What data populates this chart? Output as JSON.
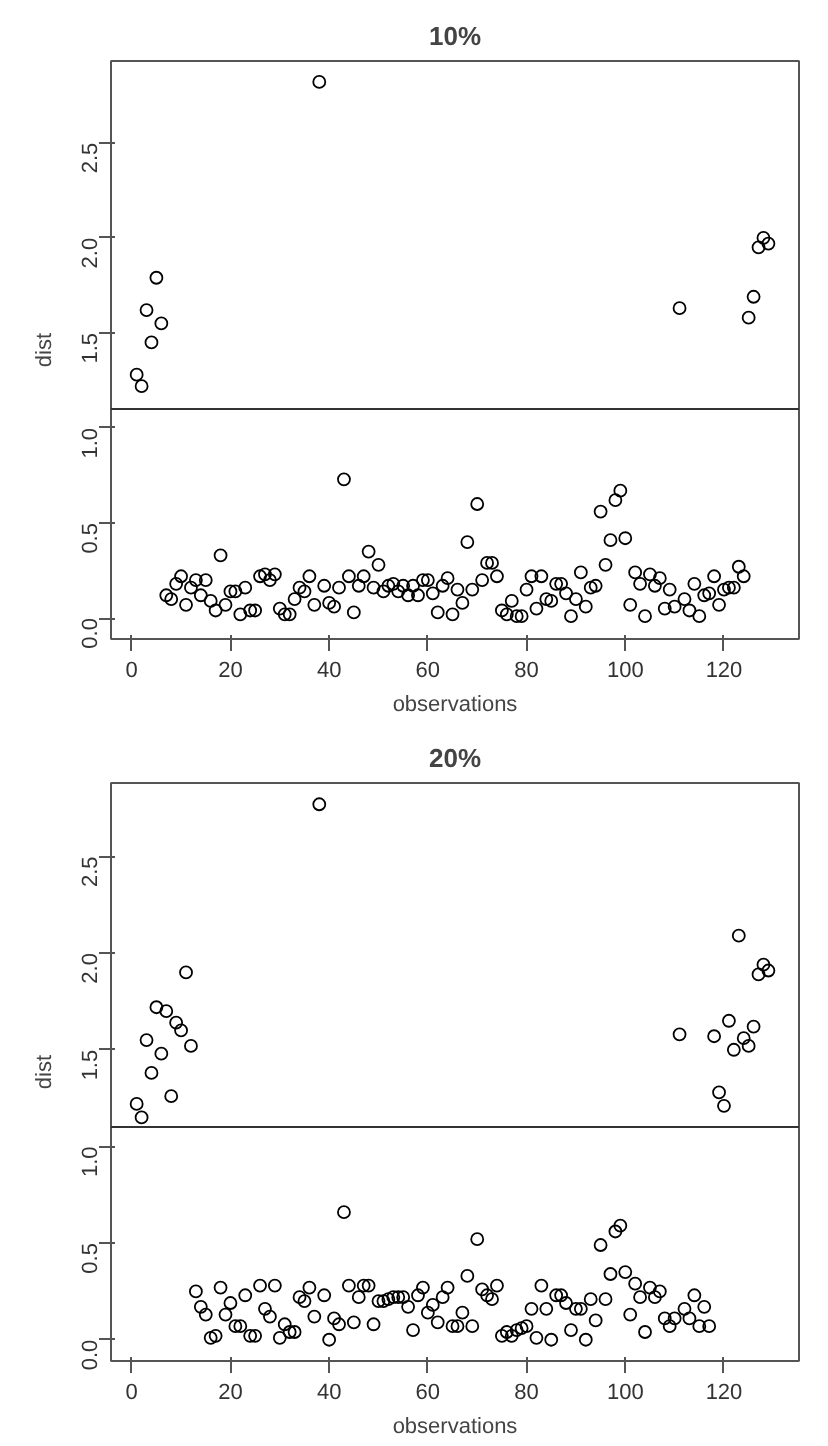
{
  "chart_data": [
    {
      "type": "scatter",
      "title": "10%",
      "xlabel": "observations",
      "ylabel": "dist",
      "marker": "circle",
      "grid": false,
      "x": [
        1,
        2,
        3,
        4,
        5,
        6,
        38,
        111,
        125,
        126,
        127,
        128,
        129,
        7,
        8,
        9,
        10,
        11,
        12,
        13,
        14,
        15,
        16,
        17,
        18,
        19,
        20,
        21,
        22,
        23,
        24,
        25,
        26,
        27,
        28,
        29,
        30,
        31,
        32,
        33,
        34,
        35,
        36,
        37,
        39,
        40,
        41,
        42,
        43,
        44,
        45,
        46,
        47,
        48,
        49,
        50,
        51,
        52,
        53,
        54,
        55,
        56,
        57,
        58,
        59,
        60,
        61,
        62,
        63,
        64,
        65,
        66,
        67,
        68,
        69,
        70,
        71,
        72,
        73,
        74,
        75,
        76,
        77,
        78,
        79,
        80,
        81,
        82,
        83,
        84,
        85,
        86,
        87,
        88,
        89,
        90,
        91,
        92,
        93,
        94,
        95,
        96,
        97,
        98,
        99,
        100,
        101,
        102,
        103,
        104,
        105,
        106,
        107,
        108,
        109,
        110,
        112,
        113,
        114,
        115,
        116,
        117,
        118,
        119,
        120,
        121,
        122,
        123,
        124
      ],
      "series": [
        {
          "color": "#000000",
          "values": [
            1.28,
            1.22,
            1.62,
            1.45,
            1.79,
            1.55,
            2.82,
            1.63,
            1.58,
            1.69,
            1.95,
            2.0,
            1.97,
            0.12,
            0.1,
            0.18,
            0.22,
            0.07,
            0.16,
            0.2,
            0.12,
            0.2,
            0.09,
            0.04,
            0.33,
            0.07,
            0.14,
            0.14,
            0.02,
            0.16,
            0.04,
            0.04,
            0.22,
            0.23,
            0.2,
            0.23,
            0.05,
            0.02,
            0.02,
            0.1,
            0.16,
            0.14,
            0.22,
            0.07,
            0.17,
            0.08,
            0.06,
            0.16,
            0.73,
            0.22,
            0.03,
            0.17,
            0.22,
            0.35,
            0.16,
            0.28,
            0.14,
            0.17,
            0.18,
            0.14,
            0.17,
            0.12,
            0.17,
            0.12,
            0.2,
            0.2,
            0.13,
            0.03,
            0.17,
            0.21,
            0.02,
            0.15,
            0.08,
            0.4,
            0.15,
            0.6,
            0.2,
            0.29,
            0.29,
            0.22,
            0.04,
            0.02,
            0.09,
            0.01,
            0.01,
            0.15,
            0.22,
            0.05,
            0.22,
            0.1,
            0.09,
            0.18,
            0.18,
            0.13,
            0.01,
            0.1,
            0.24,
            0.06,
            0.16,
            0.17,
            0.56,
            0.28,
            0.41,
            0.62,
            0.67,
            0.42,
            0.07,
            0.24,
            0.18,
            0.01,
            0.23,
            0.17,
            0.21,
            0.05,
            0.15,
            0.06,
            0.1,
            0.04,
            0.18,
            0.01,
            0.12,
            0.13,
            0.22,
            0.07,
            0.15,
            0.16,
            0.16,
            0.27,
            0.22
          ]
        }
      ],
      "xlim": [
        -4.2,
        135.2
      ],
      "xticks": [
        0,
        20,
        40,
        60,
        80,
        100,
        120
      ],
      "ylim": [
        -0.11,
        2.93
      ],
      "yticks": [
        {
          "value": 0,
          "label": "0.0"
        },
        0.5,
        {
          "value": 1,
          "label": "1.0"
        },
        1.5,
        {
          "value": 2,
          "label": "2.0"
        },
        2.5
      ],
      "ref_lines": [
        {
          "axis": "y",
          "value": 1.1
        }
      ]
    },
    {
      "type": "scatter",
      "title": "20%",
      "xlabel": "observations",
      "ylabel": "dist",
      "marker": "circle",
      "grid": false,
      "x": [
        1,
        2,
        3,
        4,
        5,
        6,
        7,
        8,
        9,
        10,
        11,
        12,
        38,
        111,
        118,
        119,
        120,
        121,
        122,
        123,
        124,
        125,
        126,
        127,
        128,
        129,
        13,
        14,
        15,
        16,
        17,
        18,
        19,
        20,
        21,
        22,
        23,
        24,
        25,
        26,
        27,
        28,
        29,
        30,
        31,
        32,
        33,
        34,
        35,
        36,
        37,
        39,
        40,
        41,
        42,
        43,
        44,
        45,
        46,
        47,
        48,
        49,
        50,
        51,
        52,
        53,
        54,
        55,
        56,
        57,
        58,
        59,
        60,
        61,
        62,
        63,
        64,
        65,
        66,
        67,
        68,
        69,
        70,
        71,
        72,
        73,
        74,
        75,
        76,
        77,
        78,
        79,
        80,
        81,
        82,
        83,
        84,
        85,
        86,
        87,
        88,
        89,
        90,
        91,
        92,
        93,
        94,
        95,
        96,
        97,
        98,
        99,
        100,
        101,
        102,
        103,
        104,
        105,
        106,
        107,
        108,
        109,
        110,
        112,
        113,
        114,
        115,
        116,
        117
      ],
      "series": [
        {
          "color": "#000000",
          "values": [
            1.22,
            1.15,
            1.55,
            1.38,
            1.72,
            1.48,
            1.7,
            1.26,
            1.64,
            1.6,
            1.9,
            1.52,
            2.77,
            1.58,
            1.57,
            1.28,
            1.21,
            1.65,
            1.5,
            2.09,
            1.56,
            1.52,
            1.62,
            1.89,
            1.94,
            1.91,
            0.25,
            0.17,
            0.13,
            0.01,
            0.02,
            0.27,
            0.13,
            0.19,
            0.07,
            0.07,
            0.23,
            0.02,
            0.02,
            0.28,
            0.16,
            0.12,
            0.28,
            0.01,
            0.08,
            0.04,
            0.04,
            0.22,
            0.2,
            0.27,
            0.12,
            0.23,
            0.0,
            0.11,
            0.08,
            0.66,
            0.28,
            0.09,
            0.22,
            0.28,
            0.28,
            0.08,
            0.2,
            0.2,
            0.21,
            0.22,
            0.22,
            0.22,
            0.17,
            0.05,
            0.23,
            0.27,
            0.14,
            0.18,
            0.09,
            0.22,
            0.27,
            0.07,
            0.07,
            0.14,
            0.33,
            0.07,
            0.52,
            0.26,
            0.23,
            0.21,
            0.28,
            0.02,
            0.04,
            0.02,
            0.05,
            0.06,
            0.07,
            0.16,
            0.01,
            0.28,
            0.16,
            0.0,
            0.23,
            0.23,
            0.19,
            0.05,
            0.16,
            0.16,
            0.0,
            0.21,
            0.1,
            0.49,
            0.21,
            0.34,
            0.56,
            0.59,
            0.35,
            0.13,
            0.29,
            0.22,
            0.04,
            0.27,
            0.22,
            0.25,
            0.11,
            0.07,
            0.11,
            0.16,
            0.11,
            0.23,
            0.07,
            0.17,
            0.07
          ]
        }
      ],
      "xlim": [
        -4.2,
        135.2
      ],
      "xticks": [
        0,
        20,
        40,
        60,
        80,
        100,
        120
      ],
      "ylim": [
        -0.11,
        2.88
      ],
      "yticks": [
        {
          "value": 0,
          "label": "0.0"
        },
        0.5,
        {
          "value": 1,
          "label": "1.0"
        },
        1.5,
        {
          "value": 2,
          "label": "2.0"
        },
        2.5
      ],
      "ref_lines": [
        {
          "axis": "y",
          "value": 1.1
        }
      ]
    }
  ]
}
